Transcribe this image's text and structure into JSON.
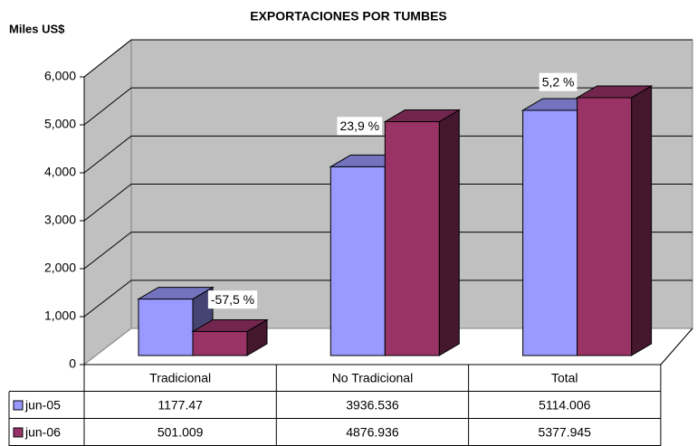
{
  "chart_data": {
    "type": "bar3d",
    "title": "EXPORTACIONES POR TUMBES",
    "y_label": "Miles US$",
    "categories": [
      "Tradicional",
      "No Tradicional",
      "Total"
    ],
    "series": [
      {
        "name": "jun-05",
        "color": "#9999ff",
        "values": [
          1177.47,
          3936.536,
          5114.006
        ]
      },
      {
        "name": "jun-06",
        "color": "#993366",
        "values": [
          501.009,
          4876.936,
          5377.945
        ]
      }
    ],
    "annotations": [
      "-57,5 %",
      "23,9 %",
      "5,2 %"
    ],
    "ylim": [
      0,
      6000
    ],
    "yticks": [
      0,
      {
        "value": 1000,
        "label": "1,000"
      },
      {
        "value": 2000,
        "label": "2,000"
      },
      {
        "value": 3000,
        "label": "3,000"
      },
      {
        "value": 4000,
        "label": "4,000"
      },
      {
        "value": 5000,
        "label": "5,000"
      },
      {
        "value": 6000,
        "label": "6,000"
      }
    ],
    "grid": true,
    "data_table": true
  }
}
